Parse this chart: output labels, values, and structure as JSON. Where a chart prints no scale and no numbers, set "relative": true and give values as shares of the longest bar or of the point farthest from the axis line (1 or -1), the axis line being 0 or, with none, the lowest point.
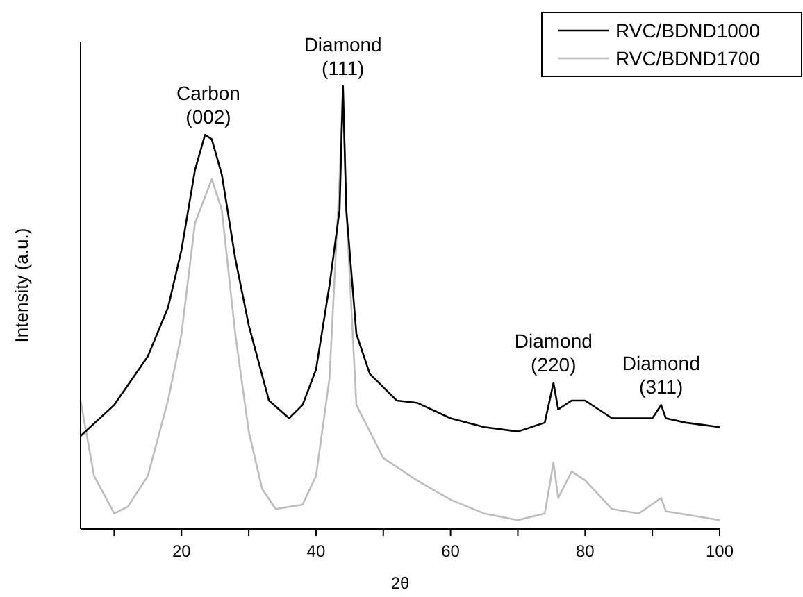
{
  "chart_data": {
    "type": "line",
    "xlabel": "2θ",
    "ylabel": "Intensity (a.u.)",
    "relative": true,
    "xlim": [
      5,
      100
    ],
    "xticks": [
      {
        "value": 10,
        "label": null
      },
      20,
      {
        "value": 30,
        "label": null
      },
      40,
      {
        "value": 50,
        "label": null
      },
      60,
      {
        "value": 70,
        "label": null
      },
      80,
      {
        "value": 90,
        "label": null
      },
      100
    ],
    "legend": "top right",
    "grid": false,
    "series": [
      {
        "name": "RVC/BDND1000",
        "color": "#000000",
        "x": [
          5,
          10,
          15,
          18,
          20,
          22,
          23.5,
          24.5,
          26,
          28,
          30,
          33,
          36,
          38,
          40,
          42,
          43.5,
          44,
          44.5,
          46,
          48,
          52,
          55,
          60,
          65,
          70,
          74,
          75.3,
          76,
          78,
          80,
          84,
          90,
          91.3,
          92,
          95,
          100
        ],
        "values": [
          0.21,
          0.28,
          0.39,
          0.5,
          0.63,
          0.81,
          0.89,
          0.88,
          0.8,
          0.61,
          0.46,
          0.29,
          0.25,
          0.28,
          0.36,
          0.55,
          0.72,
          1.0,
          0.72,
          0.44,
          0.35,
          0.29,
          0.285,
          0.25,
          0.23,
          0.22,
          0.24,
          0.33,
          0.27,
          0.29,
          0.29,
          0.25,
          0.25,
          0.28,
          0.25,
          0.24,
          0.23
        ]
      },
      {
        "name": "RVC/BDND1700",
        "color": "#bdbdbd",
        "x": [
          5,
          7,
          10,
          12,
          15,
          18,
          20,
          22,
          24.5,
          26,
          28,
          30,
          32,
          34,
          38,
          40,
          42,
          43.5,
          44,
          44.5,
          46,
          50,
          55,
          60,
          65,
          70,
          74,
          75.3,
          76,
          78,
          80,
          84,
          88,
          91.3,
          92,
          100
        ],
        "values": [
          0.29,
          0.12,
          0.035,
          0.05,
          0.12,
          0.29,
          0.44,
          0.69,
          0.79,
          0.72,
          0.44,
          0.22,
          0.09,
          0.045,
          0.055,
          0.12,
          0.34,
          0.79,
          1.0,
          0.72,
          0.28,
          0.16,
          0.11,
          0.066,
          0.035,
          0.02,
          0.035,
          0.15,
          0.07,
          0.13,
          0.11,
          0.045,
          0.035,
          0.07,
          0.04,
          0.02
        ]
      }
    ],
    "annotations": [
      {
        "text": "Carbon\n(002)",
        "x": 24,
        "y": 0.89
      },
      {
        "text": "Diamond\n(111)",
        "x": 44,
        "y": 1.0
      },
      {
        "text": "Diamond\n(220)",
        "x": 75.3,
        "y": 0.33
      },
      {
        "text": "Diamond\n(311)",
        "x": 91.3,
        "y": 0.28
      }
    ]
  }
}
